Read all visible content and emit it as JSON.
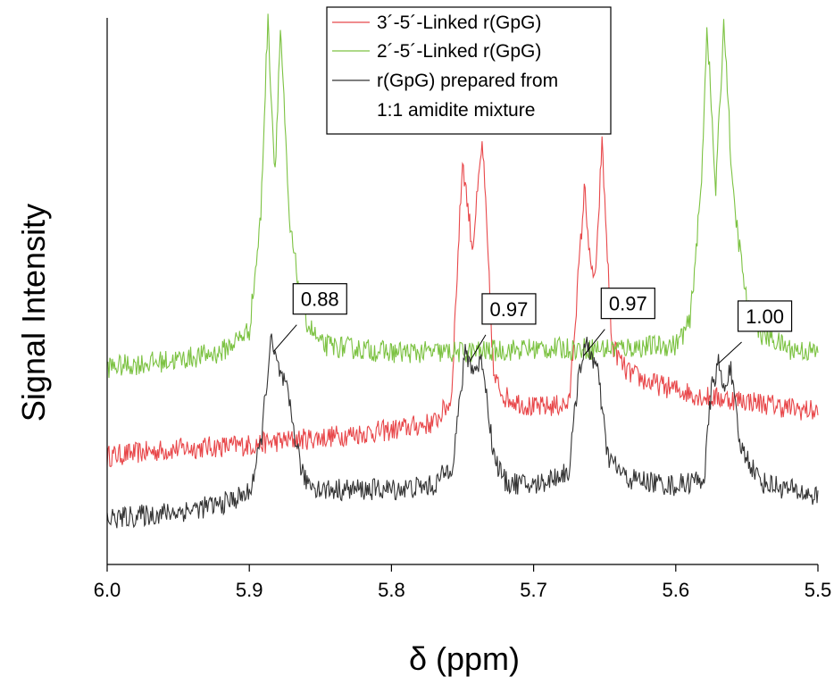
{
  "chart_data": {
    "type": "line",
    "title": "",
    "xlabel": "δ (ppm)",
    "ylabel": "Signal Intensity",
    "xlim": [
      6.0,
      5.5
    ],
    "x_reversed": true,
    "xticks": [
      "6.0",
      "5.9",
      "5.8",
      "5.7",
      "5.6",
      "5.5"
    ],
    "yticks": [],
    "grid": false,
    "legend_position": "top-center",
    "legend": [
      {
        "name": "3´-5´-Linked r(GpG)",
        "color": "#e8474a"
      },
      {
        "name": "2´-5´-Linked r(GpG)",
        "color": "#7cc242"
      },
      {
        "name": "r(GpG) prepared from",
        "color": "#333333"
      },
      {
        "name": "1:1 amidite mixture",
        "color": null
      }
    ],
    "series": [
      {
        "name": "3´-5´-Linked r(GpG)",
        "color": "#e8474a",
        "points": [
          [
            6.0,
            0.22
          ],
          [
            5.95,
            0.24
          ],
          [
            5.9,
            0.25
          ],
          [
            5.88,
            0.26
          ],
          [
            5.85,
            0.27
          ],
          [
            5.8,
            0.29
          ],
          [
            5.77,
            0.31
          ],
          [
            5.758,
            0.37
          ],
          [
            5.75,
            1.02
          ],
          [
            5.743,
            0.78
          ],
          [
            5.736,
            1.07
          ],
          [
            5.728,
            0.43
          ],
          [
            5.72,
            0.38
          ],
          [
            5.7,
            0.35
          ],
          [
            5.675,
            0.36
          ],
          [
            5.664,
            0.95
          ],
          [
            5.66,
            0.72
          ],
          [
            5.656,
            0.71
          ],
          [
            5.652,
            1.07
          ],
          [
            5.645,
            0.52
          ],
          [
            5.635,
            0.45
          ],
          [
            5.62,
            0.42
          ],
          [
            5.6,
            0.4
          ],
          [
            5.58,
            0.38
          ],
          [
            5.55,
            0.37
          ],
          [
            5.52,
            0.35
          ],
          [
            5.5,
            0.34
          ]
        ]
      },
      {
        "name": "2´-5´-Linked r(GpG)",
        "color": "#7cc242",
        "points": [
          [
            6.0,
            0.46
          ],
          [
            5.95,
            0.48
          ],
          [
            5.92,
            0.5
          ],
          [
            5.9,
            0.56
          ],
          [
            5.892,
            0.86
          ],
          [
            5.887,
            1.4
          ],
          [
            5.882,
            0.98
          ],
          [
            5.878,
            1.38
          ],
          [
            5.872,
            0.85
          ],
          [
            5.862,
            0.6
          ],
          [
            5.85,
            0.52
          ],
          [
            5.8,
            0.5
          ],
          [
            5.75,
            0.5
          ],
          [
            5.7,
            0.51
          ],
          [
            5.65,
            0.51
          ],
          [
            5.6,
            0.52
          ],
          [
            5.59,
            0.58
          ],
          [
            5.582,
            0.95
          ],
          [
            5.578,
            1.39
          ],
          [
            5.572,
            0.93
          ],
          [
            5.566,
            1.4
          ],
          [
            5.56,
            0.93
          ],
          [
            5.55,
            0.63
          ],
          [
            5.54,
            0.55
          ],
          [
            5.52,
            0.51
          ],
          [
            5.5,
            0.5
          ]
        ]
      },
      {
        "name": "r(GpG) prepared from 1:1 amidite mixture",
        "color": "#333333",
        "points": [
          [
            6.0,
            0.05
          ],
          [
            5.95,
            0.07
          ],
          [
            5.92,
            0.09
          ],
          [
            5.9,
            0.12
          ],
          [
            5.892,
            0.25
          ],
          [
            5.885,
            0.53
          ],
          [
            5.88,
            0.46
          ],
          [
            5.874,
            0.4
          ],
          [
            5.862,
            0.16
          ],
          [
            5.85,
            0.13
          ],
          [
            5.8,
            0.13
          ],
          [
            5.77,
            0.14
          ],
          [
            5.757,
            0.2
          ],
          [
            5.748,
            0.5
          ],
          [
            5.742,
            0.45
          ],
          [
            5.736,
            0.48
          ],
          [
            5.728,
            0.22
          ],
          [
            5.72,
            0.15
          ],
          [
            5.7,
            0.14
          ],
          [
            5.675,
            0.18
          ],
          [
            5.668,
            0.46
          ],
          [
            5.662,
            0.52
          ],
          [
            5.655,
            0.45
          ],
          [
            5.648,
            0.22
          ],
          [
            5.635,
            0.16
          ],
          [
            5.6,
            0.14
          ],
          [
            5.58,
            0.16
          ],
          [
            5.575,
            0.4
          ],
          [
            5.57,
            0.47
          ],
          [
            5.566,
            0.39
          ],
          [
            5.562,
            0.47
          ],
          [
            5.555,
            0.25
          ],
          [
            5.54,
            0.15
          ],
          [
            5.52,
            0.13
          ],
          [
            5.5,
            0.11
          ]
        ]
      }
    ],
    "annotations": [
      {
        "text": "0.88",
        "x": 5.883
      },
      {
        "text": "0.97",
        "x": 5.745
      },
      {
        "text": "0.97",
        "x": 5.665
      },
      {
        "text": "1.00",
        "x": 5.57
      }
    ]
  }
}
